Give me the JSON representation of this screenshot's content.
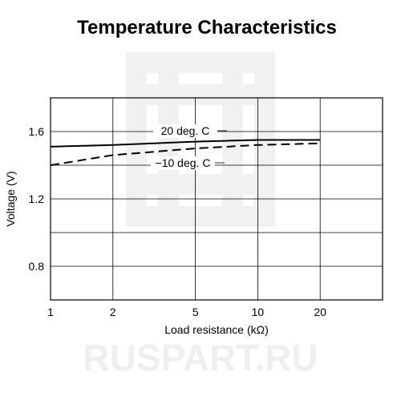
{
  "watermark": "RUSPART.RU",
  "chart_data": {
    "type": "line",
    "title": "Temperature Characteristics",
    "xlabel": "Load resistance (kΩ)",
    "ylabel": "Voltage (V)",
    "xscale": "log",
    "xlim": [
      1,
      40
    ],
    "ylim": [
      0.6,
      1.8
    ],
    "grid": true,
    "xticks": [
      1,
      2,
      5,
      10,
      20
    ],
    "xtick_labels": [
      "1",
      "2",
      "5",
      "10",
      "20"
    ],
    "yticks": [
      0.8,
      1.2,
      1.6
    ],
    "ytick_labels": [
      "0.8",
      "1.2",
      "1.6"
    ],
    "series": [
      {
        "name": "20 deg. C",
        "style": "solid",
        "x": [
          1,
          2,
          5,
          10,
          20
        ],
        "y": [
          1.51,
          1.52,
          1.54,
          1.55,
          1.55
        ]
      },
      {
        "name": "−10 deg. C",
        "style": "dashed",
        "x": [
          1,
          2,
          5,
          10,
          20
        ],
        "y": [
          1.4,
          1.46,
          1.5,
          1.52,
          1.53
        ]
      }
    ]
  }
}
